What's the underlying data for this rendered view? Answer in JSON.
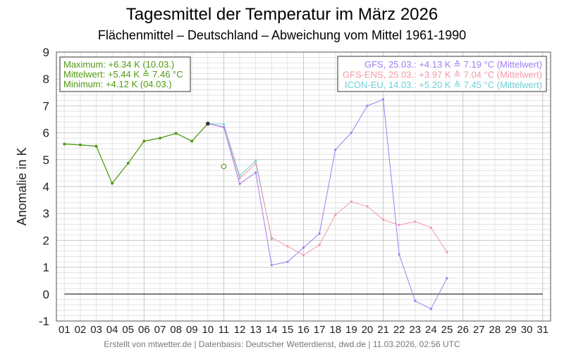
{
  "chart_data": {
    "type": "line",
    "title": "Tagesmittel der Temperatur im März 2026",
    "subtitle": "Flächenmittel – Deutschland – Abweichung vom Mittel 1961-1990",
    "ylabel": "Anomalie in K",
    "xlabel": "",
    "ylim": [
      -1,
      9
    ],
    "xlim": [
      0.5,
      31.5
    ],
    "y_ticks": [
      "9",
      "8",
      "7",
      "6",
      "5",
      "4",
      "3",
      "2",
      "1",
      "0",
      "-1"
    ],
    "x_ticks": [
      "01",
      "02",
      "03",
      "04",
      "05",
      "06",
      "07",
      "08",
      "09",
      "10",
      "11",
      "12",
      "13",
      "14",
      "15",
      "16",
      "17",
      "18",
      "19",
      "20",
      "21",
      "22",
      "23",
      "24",
      "25",
      "26",
      "27",
      "28",
      "29",
      "30",
      "31"
    ],
    "grid": true,
    "stats_box": {
      "max": "Maximum: +6.34 K  (10.03.)",
      "mean": "Mittelwert: +5.44 K  ≙  7.46 °C",
      "min": "Minimum:  +4.12 K  (04.03.)"
    },
    "legend_position": "top-right",
    "legend": [
      {
        "text": "GFS, 25.03.: +4.13 K  ≙  7.19 °C (Mittelwert)",
        "color": "#9f7df2"
      },
      {
        "text": "GFS-ENS, 25.03.: +3.97 K  ≙  7.04 °C (Mittelwert)",
        "color": "#f09aaa"
      },
      {
        "text": "ICON-EU, 14.03.: +5.20 K  ≙  7.45 °C (Mittelwert)",
        "color": "#6fcfd6"
      }
    ],
    "series": [
      {
        "color": "#4e9a10",
        "x": [
          1,
          2,
          3,
          4,
          5,
          6,
          7,
          8,
          9,
          10
        ],
        "values": [
          5.58,
          5.55,
          5.5,
          4.12,
          4.87,
          5.69,
          5.8,
          5.98,
          5.69,
          6.34
        ]
      },
      {
        "color": "#6fcfd6",
        "x": [
          10,
          11,
          12,
          13,
          14
        ],
        "values": [
          6.34,
          6.32,
          4.4,
          4.96,
          2.05
        ]
      },
      {
        "color": "#f09aaa",
        "x": [
          10,
          11,
          12,
          13,
          14,
          15,
          16,
          17,
          18,
          19,
          20,
          21,
          22,
          23,
          24,
          25
        ],
        "values": [
          6.34,
          6.22,
          4.3,
          4.85,
          2.1,
          1.78,
          1.45,
          1.83,
          2.95,
          3.44,
          3.26,
          2.77,
          2.57,
          2.7,
          2.47,
          1.56
        ]
      },
      {
        "color": "#9f7df2",
        "x": [
          10,
          11,
          12,
          13,
          14,
          15,
          16,
          17,
          18,
          19,
          20,
          21,
          22,
          23,
          24,
          25
        ],
        "values": [
          6.34,
          6.2,
          4.1,
          4.52,
          1.08,
          1.2,
          1.73,
          2.25,
          5.37,
          6.0,
          7.0,
          7.24,
          1.48,
          -0.25,
          -0.55,
          0.59
        ]
      }
    ],
    "annotation_points": [
      {
        "x": 11,
        "y": 4.75,
        "color": "#4e9a10",
        "style": "open-circle"
      },
      {
        "x": 10,
        "y": 6.34,
        "color": "#333333",
        "style": "filled-dot"
      }
    ],
    "zero_line": true
  },
  "footer": "Erstellt von mtwetter.de | Datenbasis: Deutscher Wetterdienst, dwd.de | 11.03.2026, 02:56 UTC",
  "colors": {
    "observed": "#4e9a10",
    "grid_minor": "#e3e3e3",
    "grid_major": "#c8c8c8",
    "frame": "#555555"
  }
}
